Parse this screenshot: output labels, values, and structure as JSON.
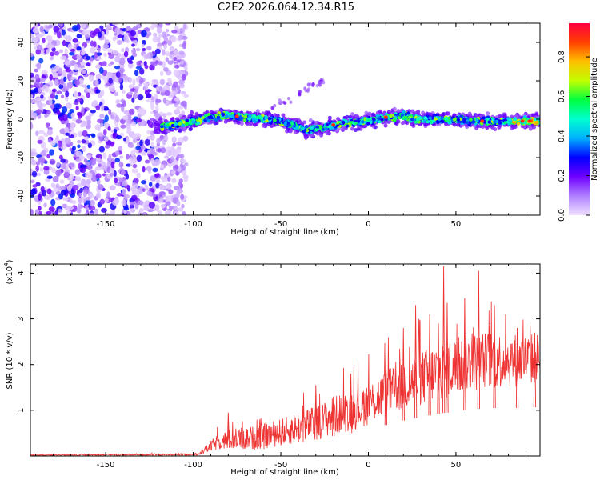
{
  "title": "C2E2.2026.064.12.34.R15",
  "chart_data": [
    {
      "type": "heatmap",
      "title": "C2E2.2026.064.12.34.R15",
      "xlabel": "Height of straight line (km)",
      "ylabel": "Frequency (Hz)",
      "xlim": [
        -193,
        98
      ],
      "ylim": [
        -50,
        50
      ],
      "xticks": [
        -150,
        -100,
        -50,
        0,
        50
      ],
      "yticks": [
        -40,
        -20,
        0,
        20,
        40
      ],
      "ridge_frequency_hz": [
        [
          -120,
          -4
        ],
        [
          -110,
          -3
        ],
        [
          -100,
          -1
        ],
        [
          -90,
          1
        ],
        [
          -80,
          2
        ],
        [
          -70,
          1
        ],
        [
          -60,
          0
        ],
        [
          -50,
          -1
        ],
        [
          -40,
          -4
        ],
        [
          -35,
          -6
        ],
        [
          -30,
          -5
        ],
        [
          -20,
          -3
        ],
        [
          -10,
          -2
        ],
        [
          0,
          -1
        ],
        [
          10,
          1
        ],
        [
          20,
          2
        ],
        [
          30,
          0
        ],
        [
          40,
          0
        ],
        [
          50,
          0
        ],
        [
          60,
          -1
        ],
        [
          70,
          -1
        ],
        [
          80,
          -1
        ],
        [
          90,
          -1
        ],
        [
          95,
          -1
        ]
      ],
      "noise_region_km": [
        -193,
        -110
      ],
      "colorbar": {
        "label": "Normalized spectral amplitude",
        "range": [
          0.0,
          0.97
        ],
        "ticks": [
          0.0,
          0.2,
          0.4,
          0.6,
          0.8
        ],
        "tick_labels": [
          "0.0",
          "0.2",
          "0.4",
          "0.6",
          "0.8"
        ],
        "colormap": [
          "#f0e0ff",
          "#b080ff",
          "#7000ff",
          "#0000ff",
          "#00b0ff",
          "#00ffd0",
          "#00ff40",
          "#c0ff00",
          "#ffc000",
          "#ff4000",
          "#ff0040"
        ]
      }
    },
    {
      "type": "line",
      "xlabel": "Height of straight line (km)",
      "ylabel": "SNR (10 * v/v)",
      "exponent_label": "(x10",
      "exponent_power": "4",
      "exponent_close": ")",
      "xlim": [
        -193,
        98
      ],
      "ylim": [
        0,
        4.2
      ],
      "xticks": [
        -150,
        -100,
        -50,
        0,
        50
      ],
      "yticks": [
        1,
        2,
        3,
        4
      ],
      "color": "#ee3333",
      "envelope": {
        "x": [
          -193,
          -100,
          -95,
          -90,
          -85,
          -80,
          -75,
          -70,
          -60,
          -50,
          -40,
          -30,
          -20,
          -10,
          0,
          10,
          20,
          30,
          40,
          50,
          60,
          70,
          80,
          90,
          98
        ],
        "mean": [
          0.02,
          0.03,
          0.08,
          0.22,
          0.32,
          0.36,
          0.38,
          0.38,
          0.42,
          0.52,
          0.62,
          0.72,
          0.88,
          1.0,
          1.15,
          1.35,
          1.55,
          1.7,
          1.85,
          1.95,
          2.05,
          2.1,
          2.1,
          2.1,
          2.15
        ],
        "spread": [
          0.01,
          0.02,
          0.05,
          0.12,
          0.18,
          0.22,
          0.25,
          0.25,
          0.28,
          0.3,
          0.35,
          0.38,
          0.42,
          0.45,
          0.48,
          0.52,
          0.55,
          0.6,
          0.65,
          0.65,
          0.65,
          0.65,
          0.6,
          0.58,
          0.55
        ]
      },
      "peaks": [
        [
          -80,
          0.95
        ],
        [
          -62,
          0.8
        ],
        [
          -30,
          1.55
        ],
        [
          -20,
          1.3
        ],
        [
          -10,
          1.8
        ],
        [
          10,
          2.2
        ],
        [
          20,
          2.8
        ],
        [
          27,
          3.3
        ],
        [
          35,
          3.1
        ],
        [
          40,
          2.9
        ],
        [
          43,
          4.15
        ],
        [
          45,
          3.35
        ],
        [
          55,
          3.45
        ],
        [
          63,
          4.05
        ],
        [
          72,
          3.3
        ],
        [
          85,
          2.8
        ],
        [
          95,
          2.7
        ]
      ]
    }
  ]
}
